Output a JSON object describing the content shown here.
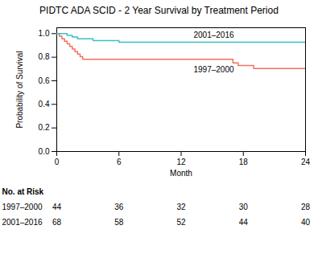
{
  "chart_data": {
    "type": "step",
    "title": "PIDTC ADA SCID - 2 Year Survival by Treatment Period",
    "xlabel": "Month",
    "ylabel": "Probability of Survival",
    "xlim": [
      0,
      24
    ],
    "ylim": [
      0,
      1.05
    ],
    "xticks": [
      0,
      6,
      12,
      18,
      24
    ],
    "yticks": [
      {
        "value": 0,
        "label": "0.0"
      },
      0.2,
      0.4,
      0.6,
      0.8,
      {
        "value": 1,
        "label": "1.0"
      }
    ],
    "series": [
      {
        "name": "1997–2000",
        "color": "#F07060",
        "x": [
          0,
          0.25,
          0.5,
          0.75,
          1.0,
          1.25,
          1.5,
          1.75,
          2.0,
          2.25,
          2.5,
          2.75,
          3.0,
          3.25,
          3.5,
          3.75,
          4.0,
          4.25,
          4.5,
          4.75,
          5.0,
          6.0,
          7.0,
          8.0,
          9.0,
          10.0,
          11.0,
          12.0,
          13.0,
          14.0,
          15.0,
          16.0,
          17.0,
          17.5,
          18.0,
          19.0,
          20.0,
          21.0,
          22.0,
          23.0,
          24.0
        ],
        "values": [
          1.0,
          0.978,
          0.957,
          0.935,
          0.913,
          0.891,
          0.87,
          0.848,
          0.826,
          0.804,
          0.783,
          0.783,
          0.783,
          0.783,
          0.783,
          0.783,
          0.783,
          0.783,
          0.783,
          0.783,
          0.783,
          0.783,
          0.783,
          0.783,
          0.783,
          0.783,
          0.783,
          0.783,
          0.783,
          0.783,
          0.783,
          0.783,
          0.752,
          0.73,
          0.73,
          0.704,
          0.704,
          0.704,
          0.704,
          0.704,
          0.704
        ],
        "at_risk": [
          44,
          36,
          32,
          30,
          28
        ]
      },
      {
        "name": "2001–2016",
        "color": "#3BBFBF",
        "x": [
          0,
          0.5,
          1.0,
          1.5,
          2.0,
          2.5,
          3.0,
          3.5,
          4.0,
          4.5,
          5.0,
          5.5,
          6.0,
          7.0,
          8.0,
          9.0,
          10.0,
          11.0,
          12.0,
          13.0,
          14.0,
          15.0,
          16.0,
          17.0,
          18.0,
          19.0,
          20.0,
          21.0,
          22.0,
          23.0,
          24.0
        ],
        "values": [
          1.0,
          1.0,
          0.985,
          0.971,
          0.956,
          0.956,
          0.956,
          0.941,
          0.941,
          0.941,
          0.941,
          0.941,
          0.927,
          0.927,
          0.927,
          0.927,
          0.927,
          0.927,
          0.927,
          0.927,
          0.927,
          0.927,
          0.927,
          0.927,
          0.927,
          0.927,
          0.927,
          0.927,
          0.927,
          0.927,
          0.927
        ],
        "at_risk": [
          68,
          58,
          52,
          44,
          40
        ]
      }
    ],
    "annotations": [
      {
        "text": "2001–2016",
        "x": 13.2,
        "y": 0.95
      },
      {
        "text": "1997–2000",
        "x": 13.2,
        "y": 0.66
      }
    ],
    "risk_header": "No. at Risk",
    "risk_x": [
      0,
      6,
      12,
      18,
      24
    ]
  }
}
